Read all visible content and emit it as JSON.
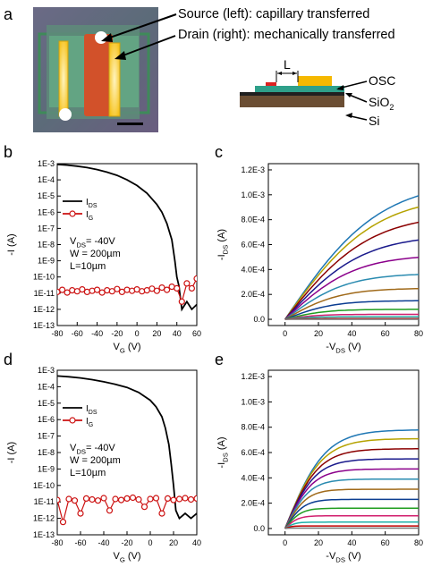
{
  "panels": {
    "a": "a",
    "b": "b",
    "c": "c",
    "d": "d",
    "e": "e"
  },
  "microscope": {
    "source_label": "Source (left): capillary transferred",
    "drain_label": "Drain (right): mechanically transferred"
  },
  "schematic": {
    "L": "L",
    "osc": "OSC",
    "sio2": "SiO",
    "sio2_sub": "2",
    "si": "Si"
  },
  "colors": {
    "c_curves": [
      "#1f77b4",
      "#b5a200",
      "#8b0000",
      "#1a1a8c",
      "#8b008b",
      "#2a8bb0",
      "#a06a1a",
      "#0b3d91",
      "#1f9d1f",
      "#d11f6e",
      "#20b2aa",
      "#c00000",
      "#777777"
    ]
  },
  "chart_data": [
    {
      "id": "b",
      "type": "line",
      "xlabel": "V",
      "xlabel_sub": "G",
      "xunit": " (V)",
      "ylabel": "-I (A)",
      "xlim": [
        -80,
        60
      ],
      "ylog": true,
      "ylim_exp": [
        -13,
        -3
      ],
      "xticks": [
        "-80",
        "-60",
        "-40",
        "-20",
        "0",
        "20",
        "40",
        "60"
      ],
      "yticks": [
        "1E-13",
        "1E-12",
        "1E-11",
        "1E-10",
        "1E-9",
        "1E-8",
        "1E-7",
        "1E-6",
        "1E-5",
        "1E-4",
        "1E-3"
      ],
      "legend": [
        {
          "label": "I",
          "sub": "DS",
          "color": "#000000",
          "marker": false
        },
        {
          "label": "I",
          "sub": "G",
          "color": "#cc1111",
          "marker": true
        }
      ],
      "notes": [
        {
          "pre": "V",
          "sub": "DS",
          "post": "= -40V"
        },
        {
          "pre": "W = 200µm",
          "sub": "",
          "post": ""
        },
        {
          "pre": "L=10µm",
          "sub": "",
          "post": ""
        }
      ],
      "ids_series": {
        "x": [
          -80,
          -70,
          -60,
          -50,
          -40,
          -30,
          -20,
          -10,
          0,
          10,
          20,
          25,
          30,
          35,
          38,
          40,
          42,
          45,
          50,
          55,
          60
        ],
        "y": [
          0.0009,
          0.00082,
          0.0007,
          0.00057,
          0.00043,
          0.0003,
          0.00019,
          0.0001,
          4.5e-05,
          1.5e-05,
          3e-06,
          1e-06,
          2e-07,
          2e-08,
          1e-09,
          1e-10,
          3e-11,
          1e-12,
          3e-12,
          1e-12,
          2e-12
        ]
      },
      "ig_series": {
        "x": [
          -80,
          -75,
          -70,
          -65,
          -60,
          -55,
          -50,
          -45,
          -40,
          -35,
          -30,
          -25,
          -20,
          -15,
          -10,
          -5,
          0,
          5,
          10,
          15,
          20,
          25,
          30,
          35,
          40,
          45,
          50,
          55,
          60
        ],
        "y": [
          1.2e-11,
          1.6e-11,
          1.1e-11,
          1.5e-11,
          1.3e-11,
          1.7e-11,
          1.2e-11,
          1.4e-11,
          1.6e-11,
          1.1e-11,
          1.5e-11,
          1.3e-11,
          1.8e-11,
          1.2e-11,
          1.6e-11,
          1.4e-11,
          1.7e-11,
          1.3e-11,
          1.5e-11,
          1.9e-11,
          1.4e-11,
          2.2e-11,
          1.6e-11,
          2.5e-11,
          2e-11,
          3e-12,
          4e-11,
          2e-11,
          8e-11
        ]
      }
    },
    {
      "id": "c",
      "type": "line",
      "xlabel": "-V",
      "xlabel_sub": "DS",
      "xunit": " (V)",
      "ylabel": "-I",
      "ylabel_sub": "DS",
      "yunit": " (A)",
      "xlim": [
        -10,
        80
      ],
      "ylim": [
        -5e-05,
        0.00125
      ],
      "xticks": [
        {
          "v": 0,
          "t": "0"
        },
        {
          "v": 20,
          "t": "20"
        },
        {
          "v": 40,
          "t": "40"
        },
        {
          "v": 60,
          "t": "60"
        },
        {
          "v": 80,
          "t": "80"
        }
      ],
      "yticks": [
        {
          "v": 0,
          "t": "0.0"
        },
        {
          "v": 0.0002,
          "t": "2.0E-4"
        },
        {
          "v": 0.0004,
          "t": "4.0E-4"
        },
        {
          "v": 0.0006,
          "t": "6.0E-4"
        },
        {
          "v": 0.0008,
          "t": "8.0E-4"
        },
        {
          "v": 0.001,
          "t": "1.0E-3"
        },
        {
          "v": 0.0012,
          "t": "1.2E-3"
        }
      ],
      "sat_values": [
        0.00112,
        0.001,
        0.00085,
        0.00068,
        0.00052,
        0.00037,
        0.00025,
        0.00015,
        8e-05,
        4e-05,
        2e-05,
        5e-06,
        5e-07
      ],
      "vsat_values": [
        95,
        90,
        85,
        78,
        70,
        62,
        55,
        48,
        40,
        33,
        25,
        15,
        5
      ]
    },
    {
      "id": "d",
      "type": "line",
      "xlabel": "V",
      "xlabel_sub": "G",
      "xunit": " (V)",
      "ylabel": "-I (A)",
      "xlim": [
        -80,
        40
      ],
      "ylog": true,
      "ylim_exp": [
        -13,
        -3
      ],
      "xticks": [
        "-80",
        "-60",
        "-40",
        "-20",
        "0",
        "20",
        "40"
      ],
      "yticks": [
        "1E-13",
        "1E-12",
        "1E-11",
        "1E-10",
        "1E-9",
        "1E-8",
        "1E-7",
        "1E-6",
        "1E-5",
        "1E-4",
        "1E-3"
      ],
      "legend": [
        {
          "label": "I",
          "sub": "DS",
          "color": "#000000",
          "marker": false
        },
        {
          "label": "I",
          "sub": "G",
          "color": "#cc1111",
          "marker": true
        }
      ],
      "notes": [
        {
          "pre": "V",
          "sub": "DS",
          "post": "= -40V"
        },
        {
          "pre": "W = 200µm",
          "sub": "",
          "post": ""
        },
        {
          "pre": "L=10µm",
          "sub": "",
          "post": ""
        }
      ],
      "ids_series": {
        "x": [
          -80,
          -70,
          -60,
          -50,
          -40,
          -30,
          -20,
          -10,
          0,
          5,
          10,
          13,
          16,
          18,
          20,
          22,
          25,
          30,
          35,
          40
        ],
        "y": [
          0.00045,
          0.0004,
          0.00034,
          0.00027,
          0.0002,
          0.00014,
          9e-05,
          4.5e-05,
          1.5e-05,
          6e-06,
          1.5e-06,
          3e-07,
          3e-08,
          2e-09,
          1e-10,
          3e-12,
          1e-12,
          2e-12,
          1e-12,
          2e-12
        ]
      },
      "ig_series": {
        "x": [
          -80,
          -75,
          -70,
          -65,
          -60,
          -55,
          -50,
          -45,
          -40,
          -35,
          -30,
          -25,
          -20,
          -15,
          -10,
          -5,
          0,
          5,
          10,
          15,
          20,
          25,
          30,
          35,
          40
        ],
        "y": [
          1.3e-11,
          6e-13,
          1.5e-11,
          1.2e-11,
          2e-12,
          1.6e-11,
          1.4e-11,
          1.2e-11,
          1.7e-11,
          3e-12,
          1.5e-11,
          1.3e-11,
          1.6e-11,
          1.8e-11,
          1.4e-11,
          5e-12,
          1.5e-11,
          1.7e-11,
          2e-12,
          1.6e-11,
          1.3e-11,
          1.5e-11,
          1.7e-11,
          1.4e-11,
          1.6e-11
        ]
      }
    },
    {
      "id": "e",
      "type": "line",
      "xlabel": "-V",
      "xlabel_sub": "DS",
      "xunit": " (V)",
      "ylabel": "-I",
      "ylabel_sub": "DS",
      "yunit": " (A)",
      "xlim": [
        -10,
        80
      ],
      "ylim": [
        -5e-05,
        0.00125
      ],
      "xticks": [
        {
          "v": 0,
          "t": "0"
        },
        {
          "v": 20,
          "t": "20"
        },
        {
          "v": 40,
          "t": "40"
        },
        {
          "v": 60,
          "t": "60"
        },
        {
          "v": 80,
          "t": "80"
        }
      ],
      "yticks": [
        {
          "v": 0,
          "t": "0.0"
        },
        {
          "v": 0.0002,
          "t": "2.0E-4"
        },
        {
          "v": 0.0004,
          "t": "4.0E-4"
        },
        {
          "v": 0.0006,
          "t": "6.0E-4"
        },
        {
          "v": 0.0008,
          "t": "8.0E-4"
        },
        {
          "v": 0.001,
          "t": "1.0E-3"
        },
        {
          "v": 0.0012,
          "t": "1.2E-3"
        }
      ],
      "sat_values": [
        0.00078,
        0.00071,
        0.00063,
        0.00055,
        0.00047,
        0.00039,
        0.00031,
        0.00023,
        0.00016,
        0.0001,
        5e-05,
        2e-05,
        3e-06
      ],
      "vsat_values": [
        40,
        37,
        34,
        31,
        28,
        25,
        22,
        19,
        16,
        13,
        10,
        7,
        4
      ]
    }
  ]
}
